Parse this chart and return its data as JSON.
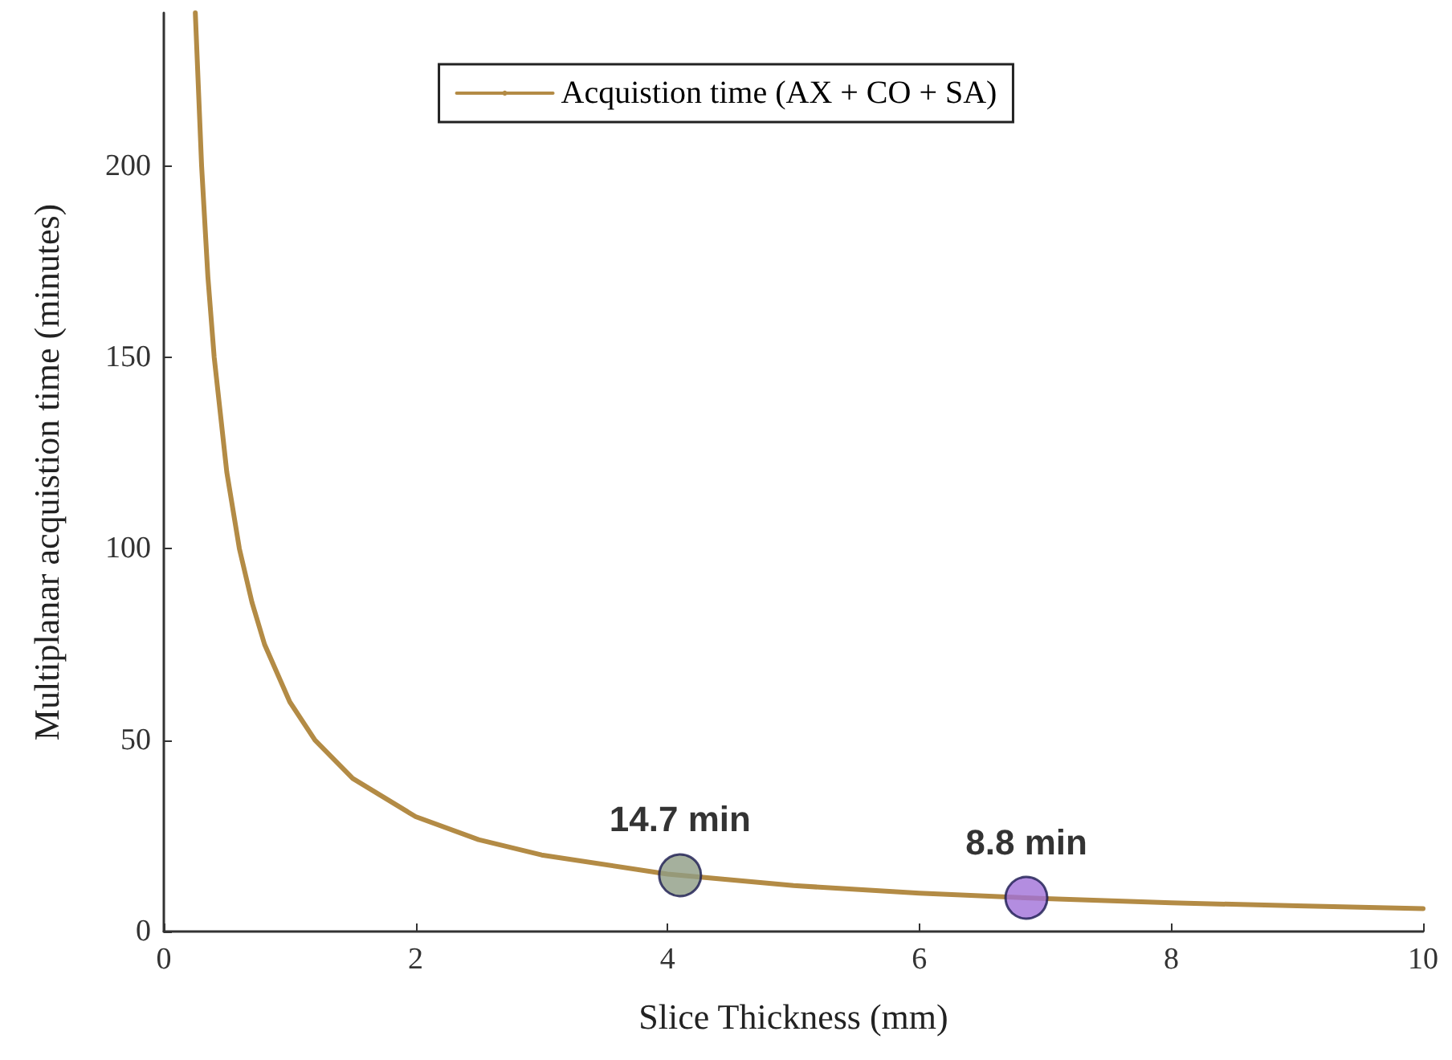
{
  "chart_data": {
    "type": "line",
    "xlabel": "Slice Thickness (mm)",
    "ylabel": "Multiplanar acquistion time (minutes)",
    "xlim": [
      0,
      10
    ],
    "xticks": [
      0,
      2,
      4,
      6,
      8,
      10
    ],
    "ylim": [
      0,
      240
    ],
    "yticks": [
      0,
      50,
      100,
      150,
      200
    ],
    "grid": false,
    "legend": "top",
    "series": [
      {
        "name": "Acquistion time (AX + CO + SA)",
        "color": "#b38b45",
        "marker": "none",
        "x": [
          0.25,
          0.3,
          0.35,
          0.4,
          0.5,
          0.6,
          0.7,
          0.8,
          1,
          1.2,
          1.5,
          2,
          2.5,
          3,
          4,
          5,
          6,
          7,
          8,
          9,
          10
        ],
        "values": [
          240,
          200,
          171,
          150,
          120,
          100,
          86,
          75,
          60,
          50,
          40,
          30,
          24,
          20,
          15,
          12,
          10,
          8.6,
          7.5,
          6.7,
          6
        ]
      },
      {
        "type": "scatter",
        "marker": "circle",
        "x": [
          4.1,
          6.85
        ],
        "values": [
          14.7,
          8.8
        ],
        "colors": [
          "#8e9c84",
          "#a070d8"
        ],
        "value_labels": [
          "14.7 min",
          "8.8 min"
        ]
      }
    ]
  }
}
